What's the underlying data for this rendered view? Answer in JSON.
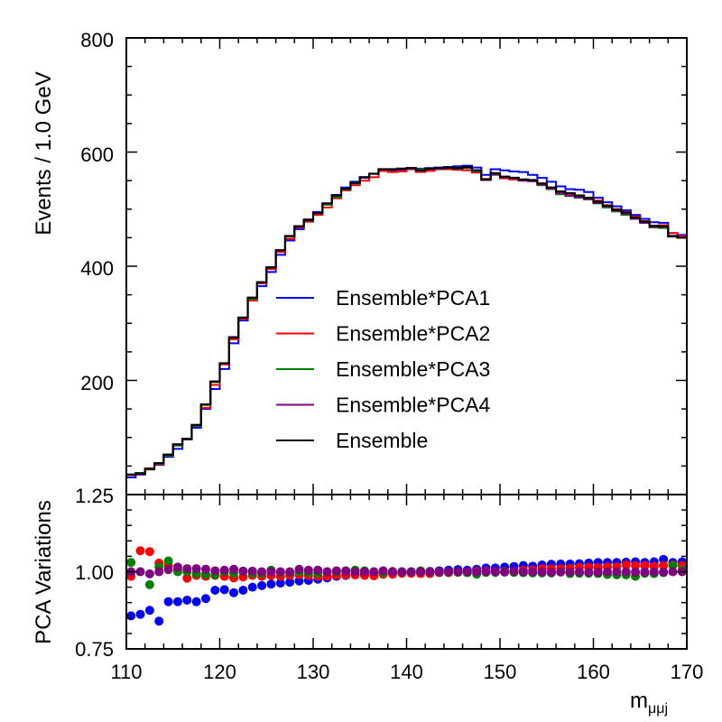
{
  "chart_data": [
    {
      "type": "line",
      "panel": "main",
      "ylabel": "Events / 1.0 GeV",
      "xlim": [
        110,
        170
      ],
      "ylim": [
        0,
        800
      ],
      "yticks": [
        "200",
        "400",
        "600",
        "800"
      ],
      "bin_edges_start": 110,
      "bin_width": 1,
      "legend_position": "center",
      "series": [
        {
          "name": "Ensemble*PCA1",
          "color": "#0000ff",
          "values": [
            30,
            35,
            44,
            52,
            66,
            80,
            97,
            117,
            150,
            185,
            220,
            265,
            305,
            340,
            365,
            390,
            420,
            445,
            465,
            478,
            495,
            510,
            525,
            538,
            548,
            555,
            562,
            567,
            568,
            569,
            570,
            571,
            572,
            573,
            574,
            575,
            576,
            573,
            560,
            570,
            568,
            566,
            565,
            560,
            555,
            548,
            540,
            535,
            534,
            530,
            520,
            512,
            505,
            498,
            490,
            483,
            477,
            476,
            458,
            455
          ]
        },
        {
          "name": "Ensemble*PCA2",
          "color": "#ff0000",
          "values": [
            34,
            36,
            46,
            53,
            68,
            86,
            98,
            120,
            152,
            192,
            228,
            272,
            308,
            340,
            370,
            395,
            425,
            448,
            468,
            478,
            490,
            503,
            519,
            533,
            542,
            550,
            556,
            567,
            565,
            566,
            570,
            565,
            567,
            570,
            570,
            569,
            568,
            564,
            553,
            562,
            554,
            552,
            550,
            550,
            545,
            538,
            530,
            527,
            522,
            520,
            515,
            507,
            500,
            495,
            487,
            479,
            470,
            472,
            458,
            453
          ]
        },
        {
          "name": "Ensemble*PCA3",
          "color": "#008000",
          "values": [
            35,
            38,
            44,
            54,
            68,
            86,
            97,
            120,
            157,
            197,
            230,
            275,
            310,
            343,
            372,
            398,
            428,
            452,
            470,
            480,
            493,
            508,
            521,
            535,
            545,
            556,
            562,
            570,
            570,
            571,
            572,
            570,
            570,
            572,
            572,
            571,
            572,
            566,
            551,
            560,
            556,
            554,
            550,
            549,
            542,
            535,
            526,
            523,
            520,
            517,
            510,
            503,
            496,
            490,
            483,
            476,
            468,
            467,
            452,
            450
          ]
        },
        {
          "name": "Ensemble*PCA4",
          "color": "#800080",
          "values": [
            35,
            37,
            45,
            55,
            70,
            88,
            98,
            122,
            158,
            198,
            230,
            276,
            310,
            345,
            372,
            398,
            428,
            453,
            470,
            482,
            493,
            510,
            524,
            536,
            546,
            556,
            562,
            570,
            569,
            570,
            571,
            567,
            570,
            571,
            572,
            572,
            573,
            567,
            551,
            561,
            556,
            554,
            550,
            549,
            543,
            536,
            528,
            524,
            521,
            518,
            511,
            505,
            497,
            492,
            483,
            476,
            469,
            469,
            452,
            450
          ]
        },
        {
          "name": "Ensemble",
          "color": "#000000",
          "values": [
            35,
            37,
            45,
            55,
            70,
            88,
            97,
            122,
            158,
            198,
            230,
            275,
            310,
            345,
            372,
            398,
            428,
            453,
            470,
            481,
            493,
            510,
            524,
            536,
            546,
            556,
            562,
            570,
            570,
            571,
            572,
            568,
            571,
            572,
            573,
            572,
            574,
            568,
            552,
            563,
            557,
            555,
            552,
            551,
            545,
            538,
            531,
            528,
            524,
            520,
            513,
            506,
            499,
            494,
            485,
            478,
            471,
            470,
            453,
            450
          ]
        }
      ]
    },
    {
      "type": "scatter",
      "panel": "ratio",
      "ylabel": "PCA Variations",
      "xlabel_main": "m",
      "xlabel_sub": "μμj",
      "xlim": [
        110,
        170
      ],
      "ylim": [
        0.75,
        1.25
      ],
      "yticks": [
        "0.75",
        "1.00",
        "1.25"
      ],
      "xticks": [
        "110",
        "120",
        "130",
        "140",
        "150",
        "160",
        "170"
      ],
      "x_start": 110.5,
      "x_step": 1,
      "series": [
        {
          "name": "PCA1",
          "color": "#0000ff",
          "values": [
            0.857,
            0.862,
            0.875,
            0.84,
            0.903,
            0.903,
            0.908,
            0.903,
            0.913,
            0.94,
            0.942,
            0.932,
            0.94,
            0.95,
            0.955,
            0.96,
            0.963,
            0.966,
            0.97,
            0.972,
            0.976,
            0.98,
            0.985,
            0.988,
            0.99,
            0.992,
            0.995,
            0.997,
            0.997,
            0.998,
            0.999,
            1.0,
            1.001,
            1.003,
            1.005,
            1.007,
            1.005,
            1.008,
            1.012,
            1.012,
            1.015,
            1.017,
            1.02,
            1.018,
            1.022,
            1.024,
            1.025,
            1.025,
            1.026,
            1.028,
            1.03,
            1.03,
            1.03,
            1.031,
            1.032,
            1.03,
            1.032,
            1.04,
            1.03,
            1.032
          ]
        },
        {
          "name": "PCA2",
          "color": "#ff0000",
          "values": [
            0.985,
            1.068,
            1.065,
            1.028,
            1.02,
            1.005,
            0.979,
            0.988,
            0.985,
            0.988,
            0.985,
            0.98,
            0.983,
            0.988,
            0.985,
            0.988,
            0.985,
            0.988,
            0.99,
            0.988,
            0.985,
            0.985,
            0.988,
            0.99,
            0.99,
            0.988,
            0.987,
            0.992,
            0.992,
            0.995,
            0.995,
            0.994,
            0.994,
            0.997,
            0.997,
            1.0,
            1.0,
            1.002,
            1.003,
            1.001,
            1.001,
            1.002,
            1.005,
            1.006,
            1.01,
            1.01,
            1.01,
            1.011,
            1.014,
            1.015,
            1.014,
            1.016,
            1.016,
            1.022,
            1.02,
            1.02,
            1.018,
            1.02,
            1.022,
            1.02
          ]
        },
        {
          "name": "PCA3",
          "color": "#008000",
          "values": [
            1.03,
            1.0,
            0.958,
            1.015,
            1.035,
            1.0,
            1.0,
            0.995,
            0.992,
            0.99,
            1.0,
            0.995,
            1.002,
            0.995,
            0.995,
            1.005,
            0.998,
            0.998,
            1.0,
            0.998,
            0.995,
            1.0,
            1.0,
            1.003,
            1.005,
            1.003,
            1.0,
            0.997,
            1.001,
            1.0,
            1.0,
            1.003,
            1.0,
            0.999,
            0.999,
            0.998,
            0.997,
            0.992,
            0.998,
            0.998,
            1.0,
            0.998,
            0.997,
            0.996,
            0.996,
            0.996,
            1.0,
            0.994,
            0.995,
            0.995,
            0.994,
            0.991,
            0.99,
            0.99,
            0.985,
            0.995,
            0.994,
            0.997,
            1.02,
            1.005
          ]
        },
        {
          "name": "PCA4",
          "color": "#800080",
          "values": [
            1.0,
            1.0,
            0.993,
            1.0,
            1.007,
            1.015,
            1.01,
            1.01,
            1.008,
            1.003,
            1.005,
            1.008,
            1.002,
            1.002,
            1.0,
            1.0,
            1.0,
            1.0,
            1.008,
            1.005,
            1.005,
            1.0,
            1.003,
            1.002,
            1.0,
            1.0,
            1.0,
            1.003,
            1.0,
            1.0,
            1.0,
            1.0,
            1.0,
            1.0,
            1.0,
            1.0,
            1.0,
            1.0,
            1.001,
            1.0,
            0.999,
            1.002,
            1.0,
            1.0,
            1.0,
            0.999,
            0.999,
            1.0,
            1.0,
            0.999,
            0.999,
            1.0,
            1.0,
            1.0,
            0.999,
            0.999,
            1.0,
            0.999,
            1.0,
            1.0
          ]
        }
      ]
    }
  ]
}
